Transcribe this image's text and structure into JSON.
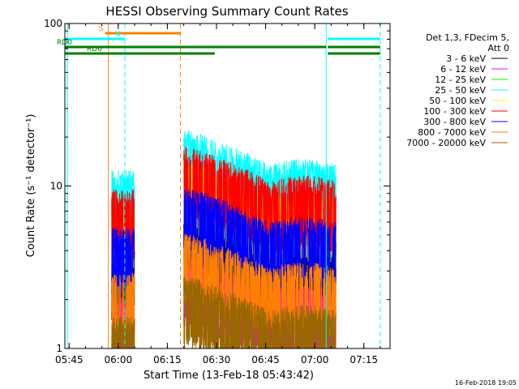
{
  "chart_data": {
    "type": "line",
    "title": "HESSI Observing Summary Count Rates",
    "xlabel": "Start Time (13-Feb-18 05:43:42)",
    "ylabel": "Count Rate (s⁻¹ detector⁻¹)",
    "y_scale": "log",
    "ylim": [
      1,
      100
    ],
    "xlim": [
      "05:43:42",
      "07:23:00"
    ],
    "x_ticks": [
      "05:45",
      "06:00",
      "06:15",
      "06:30",
      "06:45",
      "07:00",
      "07:15"
    ],
    "y_ticks": [
      "1",
      "10",
      "100"
    ],
    "legend_title": [
      "Det 1,3, FDecim 5,",
      "Att 0"
    ],
    "legend_position": "top-right",
    "series": [
      {
        "name": "3 - 6 keV",
        "color": "#000000",
        "base": 3.2
      },
      {
        "name": "6 - 12 keV",
        "color": "#ff00ff",
        "base": 1.6
      },
      {
        "name": "12 - 25 keV",
        "color": "#00ff00",
        "base": 6.5
      },
      {
        "name": "25 - 50 keV",
        "color": "#00ffff",
        "base": 9.5
      },
      {
        "name": "50 - 100 keV",
        "color": "#ffff00",
        "base": 6.0
      },
      {
        "name": "100 - 300 keV",
        "color": "#ff0000",
        "base": 7.5
      },
      {
        "name": "300 - 800 keV",
        "color": "#0000ff",
        "base": 4.2
      },
      {
        "name": "800 - 7000 keV",
        "color": "#ff8000",
        "base": 2.2
      },
      {
        "name": "7000 - 20000 keV",
        "color": "#996600",
        "base": 1.2
      }
    ],
    "flags": [
      {
        "label": "S",
        "color": "#ff8000",
        "segments": [
          [
            "05:56:00",
            "06:19:00"
          ]
        ]
      },
      {
        "label": "N",
        "color": "#00ffff",
        "segments": [
          [
            "05:43:42",
            "06:02:00"
          ],
          [
            "07:04:00",
            "07:20:00"
          ]
        ]
      },
      {
        "label": "RD0",
        "color": "#008000",
        "segments": [
          [
            "05:43:42",
            "06:19:00"
          ],
          [
            "06:19:00",
            "06:30:00"
          ],
          [
            "06:30:00",
            "07:03:30"
          ],
          [
            "07:04:00",
            "07:20:00"
          ]
        ]
      },
      {
        "label": "RD6",
        "color": "#008000",
        "segments": [
          [
            "05:43:42",
            "06:19:00"
          ],
          [
            "06:19:00",
            "06:29:30"
          ],
          [
            "07:04:00",
            "07:20:00"
          ]
        ]
      }
    ],
    "data_intervals": [
      [
        "05:58:00",
        "06:05:00"
      ],
      [
        "06:20:00",
        "07:06:30"
      ]
    ],
    "vertical_markers": [
      {
        "time": "05:44:30",
        "color": "#00ffff",
        "style": "solid"
      },
      {
        "time": "05:57:00",
        "color": "#ff8000",
        "style": "solid"
      },
      {
        "time": "06:02:00",
        "color": "#00ffff",
        "style": "dashed"
      },
      {
        "time": "06:19:00",
        "color": "#ff8000",
        "style": "dashed"
      },
      {
        "time": "07:03:30",
        "color": "#00ffff",
        "style": "solid"
      },
      {
        "time": "07:20:00",
        "color": "#00ffff",
        "style": "dashed"
      }
    ],
    "grid": false
  },
  "footer": {
    "date_stamp": "16-Feb-2018 19:05"
  }
}
